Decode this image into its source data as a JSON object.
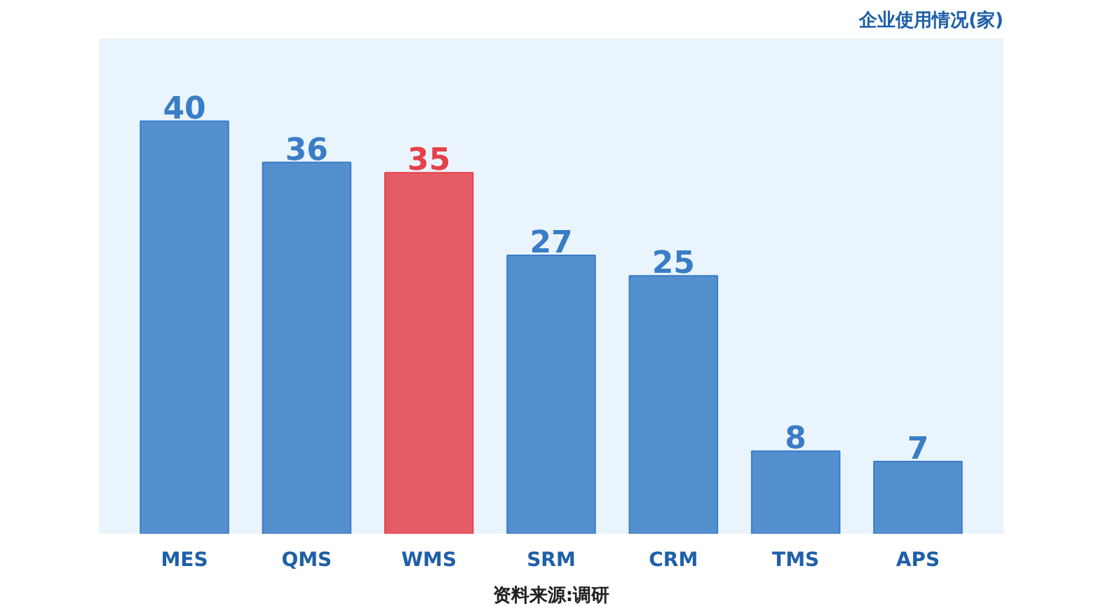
{
  "chart_data": {
    "type": "bar",
    "ylabel": "企业使用情况(家)",
    "categories": [
      "MES",
      "QMS",
      "WMS",
      "SRM",
      "CRM",
      "TMS",
      "APS"
    ],
    "values": [
      40,
      36,
      35,
      27,
      25,
      8,
      7
    ],
    "colors": [
      "#3a7dc6",
      "#3a7dc6",
      "#e5414b",
      "#3a7dc6",
      "#3a7dc6",
      "#3a7dc6",
      "#3a7dc6"
    ],
    "data_labels": true,
    "annotations": [
      "资料来源:调研"
    ]
  }
}
